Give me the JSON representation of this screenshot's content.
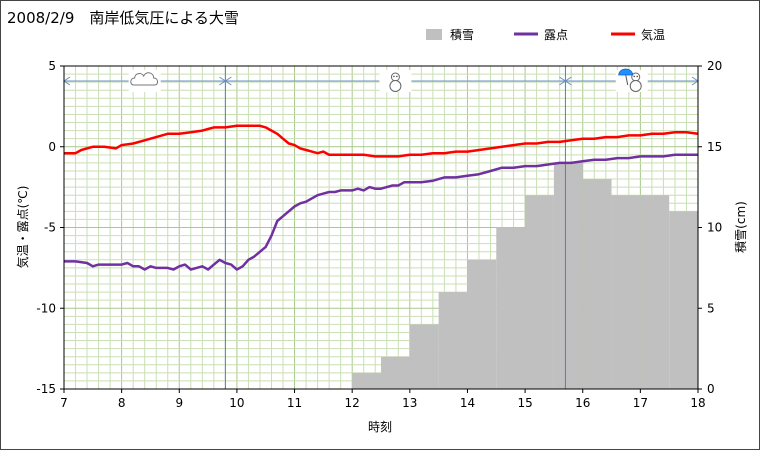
{
  "chart_data": {
    "type": "line+bar",
    "title": "2008/2/9　南岸低気圧による大雪",
    "xlabel": "時刻",
    "ylabel_left": "気温・露点(℃)",
    "ylabel_right": "積雪(cm)",
    "xlim": [
      7,
      18
    ],
    "ylim_left": [
      -15,
      5
    ],
    "ylim_right": [
      0,
      20
    ],
    "x_ticks": [
      7,
      8,
      9,
      10,
      11,
      12,
      13,
      14,
      15,
      16,
      17,
      18
    ],
    "y_left_ticks": [
      5,
      0,
      -5,
      -10,
      -15
    ],
    "y_right_ticks": [
      20,
      15,
      10,
      5,
      0
    ],
    "grid": true,
    "legend_position": "top-right",
    "legend": [
      {
        "label": "積雪",
        "color": "#c0c0c0",
        "kind": "bar"
      },
      {
        "label": "露点",
        "color": "#7030a0",
        "kind": "line"
      },
      {
        "label": "気温",
        "color": "#ff0000",
        "kind": "line"
      }
    ],
    "weather_changes_at": [
      9.8,
      15.7
    ],
    "weather_icons": [
      "cloud-icon",
      "snowman-icon",
      "umbrella-snowman-icon"
    ],
    "series": [
      {
        "name": "気温",
        "color": "#ff0000",
        "x": [
          7.0,
          7.2,
          7.3,
          7.5,
          7.7,
          7.9,
          8.0,
          8.2,
          8.4,
          8.6,
          8.8,
          9.0,
          9.2,
          9.4,
          9.5,
          9.6,
          9.7,
          9.8,
          10.0,
          10.2,
          10.4,
          10.5,
          10.6,
          10.7,
          10.8,
          10.9,
          11.0,
          11.1,
          11.2,
          11.3,
          11.4,
          11.5,
          11.6,
          11.7,
          11.8,
          12.0,
          12.2,
          12.4,
          12.6,
          12.8,
          13.0,
          13.2,
          13.4,
          13.6,
          13.8,
          14.0,
          14.2,
          14.4,
          14.6,
          14.8,
          15.0,
          15.2,
          15.4,
          15.6,
          15.8,
          16.0,
          16.2,
          16.4,
          16.6,
          16.8,
          17.0,
          17.2,
          17.4,
          17.6,
          17.8,
          18.0
        ],
        "values": [
          -0.4,
          -0.4,
          -0.2,
          0.0,
          0.0,
          -0.1,
          0.1,
          0.2,
          0.4,
          0.6,
          0.8,
          0.8,
          0.9,
          1.0,
          1.1,
          1.2,
          1.2,
          1.2,
          1.3,
          1.3,
          1.3,
          1.2,
          1.0,
          0.8,
          0.5,
          0.2,
          0.1,
          -0.1,
          -0.2,
          -0.3,
          -0.4,
          -0.3,
          -0.5,
          -0.5,
          -0.5,
          -0.5,
          -0.5,
          -0.6,
          -0.6,
          -0.6,
          -0.5,
          -0.5,
          -0.4,
          -0.4,
          -0.3,
          -0.3,
          -0.2,
          -0.1,
          0.0,
          0.1,
          0.2,
          0.2,
          0.3,
          0.3,
          0.4,
          0.5,
          0.5,
          0.6,
          0.6,
          0.7,
          0.7,
          0.8,
          0.8,
          0.9,
          0.9,
          0.8
        ]
      },
      {
        "name": "露点",
        "color": "#7030a0",
        "x": [
          7.0,
          7.2,
          7.4,
          7.5,
          7.6,
          7.8,
          8.0,
          8.1,
          8.2,
          8.3,
          8.4,
          8.5,
          8.6,
          8.7,
          8.8,
          8.9,
          9.0,
          9.1,
          9.2,
          9.3,
          9.4,
          9.5,
          9.6,
          9.7,
          9.8,
          9.9,
          10.0,
          10.1,
          10.2,
          10.3,
          10.4,
          10.5,
          10.6,
          10.7,
          10.8,
          10.9,
          11.0,
          11.1,
          11.2,
          11.3,
          11.4,
          11.5,
          11.6,
          11.7,
          11.8,
          11.9,
          12.0,
          12.1,
          12.2,
          12.3,
          12.4,
          12.5,
          12.6,
          12.7,
          12.8,
          12.9,
          13.0,
          13.2,
          13.4,
          13.6,
          13.8,
          14.0,
          14.2,
          14.4,
          14.6,
          14.8,
          15.0,
          15.2,
          15.4,
          15.6,
          15.8,
          16.0,
          16.2,
          16.4,
          16.6,
          16.8,
          17.0,
          17.2,
          17.4,
          17.6,
          17.8,
          18.0
        ],
        "values": [
          -7.1,
          -7.1,
          -7.2,
          -7.4,
          -7.3,
          -7.3,
          -7.3,
          -7.2,
          -7.4,
          -7.4,
          -7.6,
          -7.4,
          -7.5,
          -7.5,
          -7.5,
          -7.6,
          -7.4,
          -7.3,
          -7.6,
          -7.5,
          -7.4,
          -7.6,
          -7.3,
          -7.0,
          -7.2,
          -7.3,
          -7.6,
          -7.4,
          -7.0,
          -6.8,
          -6.5,
          -6.2,
          -5.5,
          -4.6,
          -4.3,
          -4.0,
          -3.7,
          -3.5,
          -3.4,
          -3.2,
          -3.0,
          -2.9,
          -2.8,
          -2.8,
          -2.7,
          -2.7,
          -2.7,
          -2.6,
          -2.7,
          -2.5,
          -2.6,
          -2.6,
          -2.5,
          -2.4,
          -2.4,
          -2.2,
          -2.2,
          -2.2,
          -2.1,
          -1.9,
          -1.9,
          -1.8,
          -1.7,
          -1.5,
          -1.3,
          -1.3,
          -1.2,
          -1.2,
          -1.1,
          -1.0,
          -1.0,
          -0.9,
          -0.8,
          -0.8,
          -0.7,
          -0.7,
          -0.6,
          -0.6,
          -0.6,
          -0.5,
          -0.5,
          -0.5
        ]
      },
      {
        "name": "積雪",
        "color": "#c0c0c0",
        "type": "bar",
        "axis": "right",
        "bar_width_hours": 0.5,
        "x_start": [
          12.0,
          12.5,
          13.0,
          13.5,
          14.0,
          14.5,
          15.0,
          15.5,
          16.0,
          16.5,
          17.0,
          17.5
        ],
        "values": [
          1,
          2,
          4,
          6,
          8,
          10,
          12,
          14,
          13,
          12,
          12,
          11
        ]
      }
    ]
  }
}
